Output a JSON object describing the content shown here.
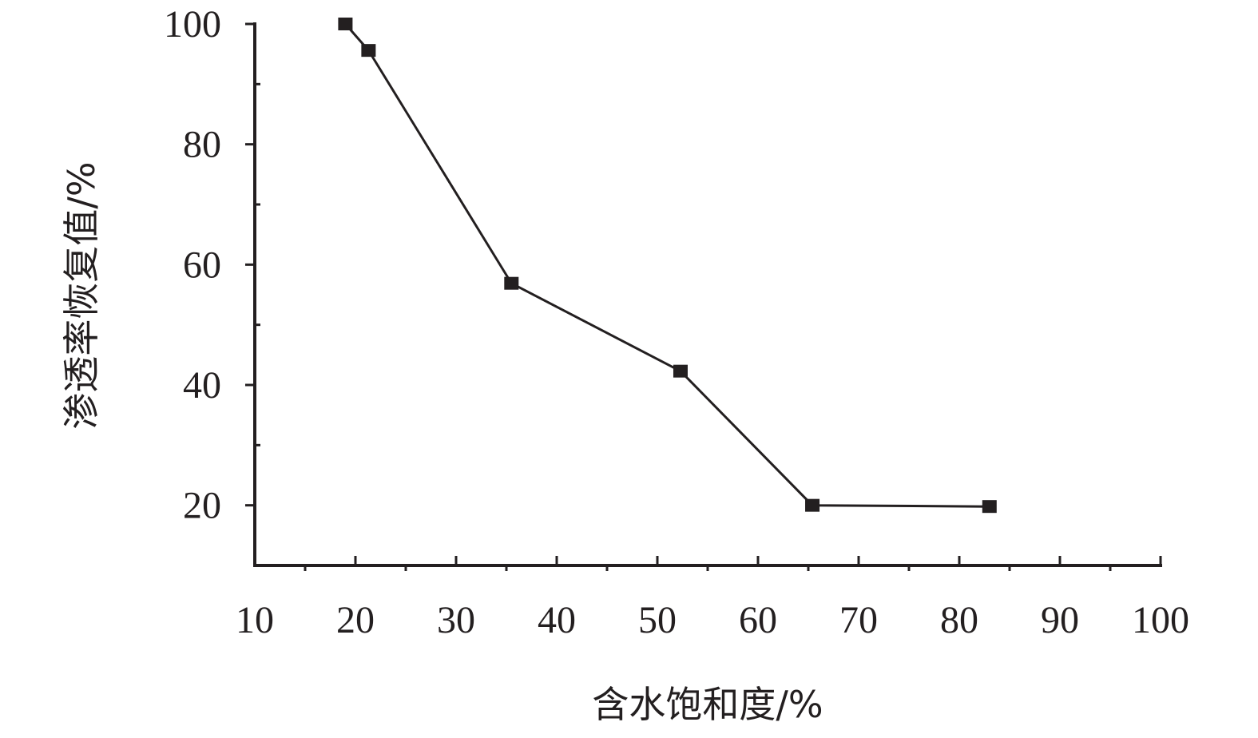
{
  "chart_data": {
    "type": "line",
    "xlabel": "含水饱和度/%",
    "ylabel": "渗透率恢复值/%",
    "xlim": [
      10,
      100
    ],
    "ylim": [
      10,
      100
    ],
    "x_ticks": [
      10,
      20,
      30,
      40,
      50,
      60,
      70,
      80,
      90,
      100
    ],
    "y_ticks": [
      20,
      40,
      60,
      80,
      100
    ],
    "x_minor_ticks": [
      15,
      25,
      35,
      45,
      55,
      65,
      75,
      85,
      95
    ],
    "y_minor_ticks": [
      30,
      50,
      70,
      90
    ],
    "grid": false,
    "series": [
      {
        "marker": "square",
        "color": "#231f20",
        "points": [
          {
            "x": 19.0,
            "y": 100.0
          },
          {
            "x": 21.3,
            "y": 95.6
          },
          {
            "x": 35.5,
            "y": 56.9
          },
          {
            "x": 52.3,
            "y": 42.3
          },
          {
            "x": 65.4,
            "y": 20.0
          },
          {
            "x": 83.0,
            "y": 19.8
          }
        ]
      }
    ]
  }
}
